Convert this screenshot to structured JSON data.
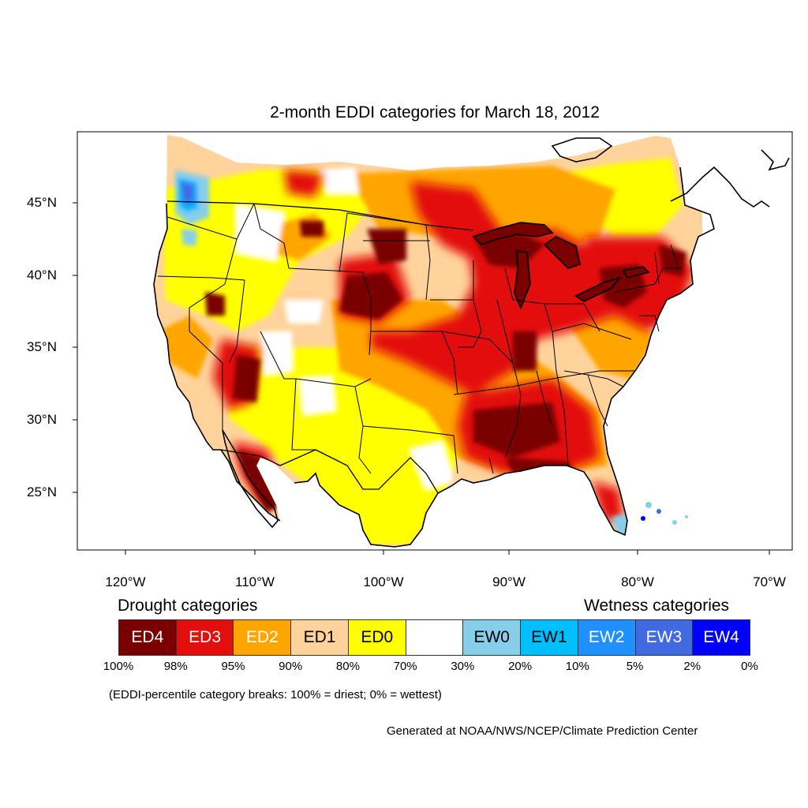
{
  "title": "2-month EDDI categories for March 18, 2012",
  "lat_labels": [
    "45°N",
    "40°N",
    "35°N",
    "30°N",
    "25°N"
  ],
  "lon_labels": [
    "120°W",
    "110°W",
    "100°W",
    "90°W",
    "80°W",
    "70°W"
  ],
  "legend": {
    "drought_heading": "Drought categories",
    "wetness_heading": "Wetness categories",
    "categories": [
      {
        "label": "ED4",
        "color": "#7a0000",
        "text_color": "#ffffff"
      },
      {
        "label": "ED3",
        "color": "#e30e0e",
        "text_color": "#ffffff"
      },
      {
        "label": "ED2",
        "color": "#ffa500",
        "text_color": "#ffffff"
      },
      {
        "label": "ED1",
        "color": "#ffd39b",
        "text_color": "#000000"
      },
      {
        "label": "ED0",
        "color": "#ffff00",
        "text_color": "#000000"
      },
      {
        "label": "",
        "color": "#ffffff",
        "text_color": "#000000"
      },
      {
        "label": "EW0",
        "color": "#87ceeb",
        "text_color": "#000000"
      },
      {
        "label": "EW1",
        "color": "#00bfff",
        "text_color": "#000000"
      },
      {
        "label": "EW2",
        "color": "#1e90ff",
        "text_color": "#ffffff"
      },
      {
        "label": "EW3",
        "color": "#4169e1",
        "text_color": "#ffffff"
      },
      {
        "label": "EW4",
        "color": "#0000ff",
        "text_color": "#ffffff"
      }
    ],
    "breaks": [
      "100%",
      "98%",
      "95%",
      "90%",
      "80%",
      "70%",
      "30%",
      "20%",
      "10%",
      "5%",
      "2%",
      "0%"
    ]
  },
  "note": "(EDDI-percentile category breaks: 100% = driest; 0% = wettest)",
  "credit": "Generated at NOAA/NWS/NCEP/Climate Prediction Center"
}
